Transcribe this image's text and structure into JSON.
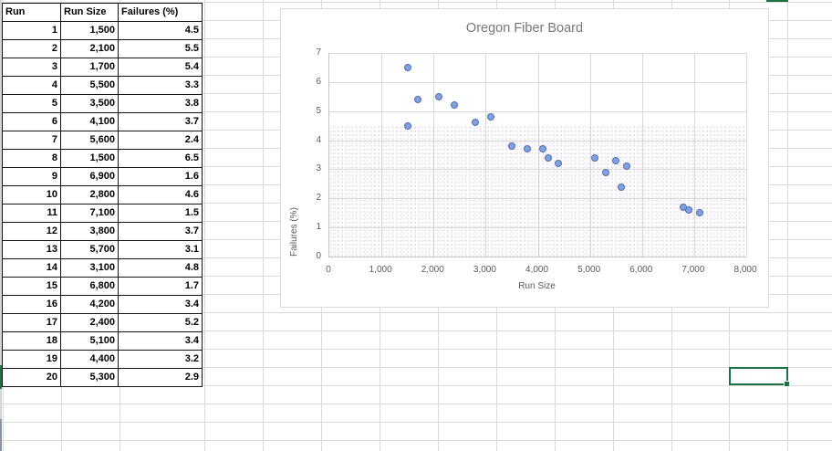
{
  "table": {
    "headers": [
      "Run",
      "Run Size",
      "Failures (%)"
    ],
    "rows": [
      [
        "1",
        "1,500",
        "4.5"
      ],
      [
        "2",
        "2,100",
        "5.5"
      ],
      [
        "3",
        "1,700",
        "5.4"
      ],
      [
        "4",
        "5,500",
        "3.3"
      ],
      [
        "5",
        "3,500",
        "3.8"
      ],
      [
        "6",
        "4,100",
        "3.7"
      ],
      [
        "7",
        "5,600",
        "2.4"
      ],
      [
        "8",
        "1,500",
        "6.5"
      ],
      [
        "9",
        "6,900",
        "1.6"
      ],
      [
        "10",
        "2,800",
        "4.6"
      ],
      [
        "11",
        "7,100",
        "1.5"
      ],
      [
        "12",
        "3,800",
        "3.7"
      ],
      [
        "13",
        "5,700",
        "3.1"
      ],
      [
        "14",
        "3,100",
        "4.8"
      ],
      [
        "15",
        "6,800",
        "1.7"
      ],
      [
        "16",
        "4,200",
        "3.4"
      ],
      [
        "17",
        "2,400",
        "5.2"
      ],
      [
        "18",
        "5,100",
        "3.4"
      ],
      [
        "19",
        "4,400",
        "3.2"
      ],
      [
        "20",
        "5,300",
        "2.9"
      ]
    ]
  },
  "chart_data": {
    "type": "scatter",
    "title": "Oregon Fiber Board",
    "xlabel": "Run Size",
    "ylabel": "Failures (%)",
    "xlim": [
      0,
      8000
    ],
    "ylim": [
      0,
      7
    ],
    "x_ticks": [
      "0",
      "1,000",
      "2,000",
      "3,000",
      "4,000",
      "5,000",
      "6,000",
      "7,000",
      "8,000"
    ],
    "y_ticks": [
      "0",
      "1",
      "2",
      "3",
      "4",
      "5",
      "6",
      "7"
    ],
    "grid": true,
    "legend": "none",
    "series": [
      {
        "name": "Failures (%)",
        "points": [
          [
            1500,
            4.5
          ],
          [
            2100,
            5.5
          ],
          [
            1700,
            5.4
          ],
          [
            5500,
            3.3
          ],
          [
            3500,
            3.8
          ],
          [
            4100,
            3.7
          ],
          [
            5600,
            2.4
          ],
          [
            1500,
            6.5
          ],
          [
            6900,
            1.6
          ],
          [
            2800,
            4.6
          ],
          [
            7100,
            1.5
          ],
          [
            3800,
            3.7
          ],
          [
            5700,
            3.1
          ],
          [
            3100,
            4.8
          ],
          [
            6800,
            1.7
          ],
          [
            4200,
            3.4
          ],
          [
            2400,
            5.2
          ],
          [
            5100,
            3.4
          ],
          [
            4400,
            3.2
          ],
          [
            5300,
            2.9
          ]
        ]
      }
    ],
    "marker_fill": "#84a1dc",
    "marker_stroke": "#4a6fbd",
    "title_color": "#767676",
    "axis_text_color": "#595959"
  },
  "colors": {
    "selection_green": "#1e7145",
    "sheet_gridline": "#d7ddd5",
    "chart_gridline": "#d9d9d9",
    "table_border": "#141414"
  }
}
